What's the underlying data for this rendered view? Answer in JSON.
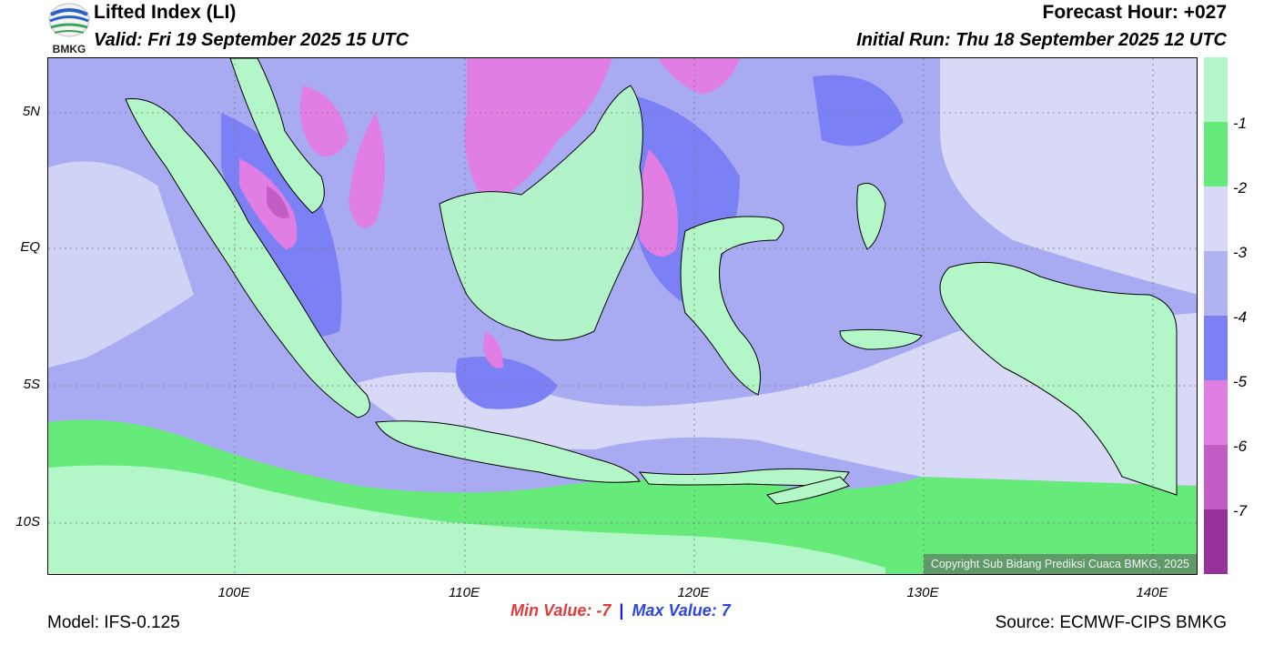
{
  "header": {
    "title": "Lifted Index (LI)",
    "valid": "Valid: Fri 19 September 2025 15 UTC",
    "forecast_hour": "Forecast Hour: +027",
    "initial_run": "Initial Run: Thu 18 September 2025 12 UTC"
  },
  "logo": {
    "text": "BMKG"
  },
  "map": {
    "copyright": "Copyright Sub Bidang Prediksi Cuaca BMKG, 2025",
    "lat_labels": [
      "5N",
      "EQ",
      "5S",
      "10S"
    ],
    "lon_labels": [
      "100E",
      "110E",
      "120E",
      "130E",
      "140E"
    ]
  },
  "legend": {
    "labels": [
      "-1",
      "-2",
      "-3",
      "-4",
      "-5",
      "-6",
      "-7"
    ],
    "colors": [
      "#b3f7c8",
      "#66ea7a",
      "#d7d9f7",
      "#b2b3f1",
      "#7b80f5",
      "#e07ee3",
      "#c45cc6",
      "#96309a"
    ]
  },
  "stats": {
    "min_label": "Min Value:  -7",
    "separator": "|",
    "max_label": "Max Value:   7"
  },
  "footer": {
    "model": "Model: IFS-0.125",
    "source": "Source: ECMWF-CIPS BMKG"
  }
}
